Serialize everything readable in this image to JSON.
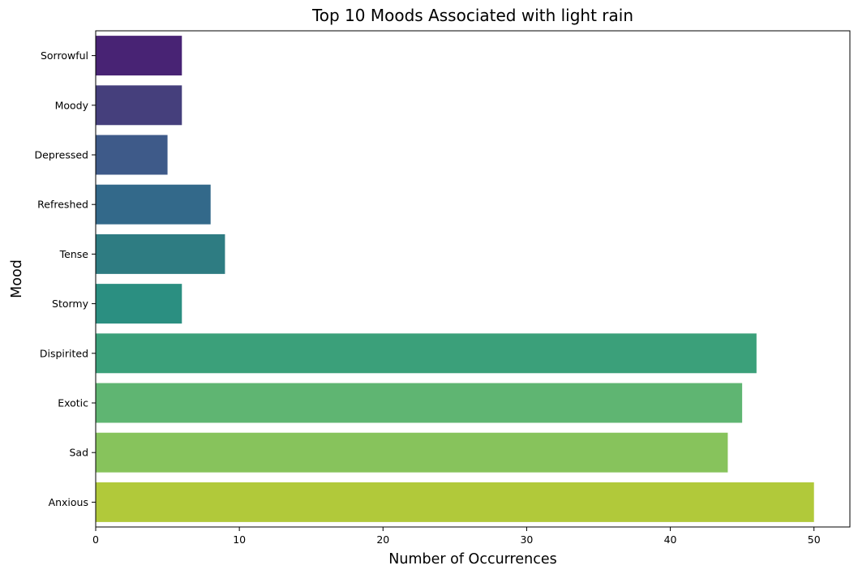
{
  "chart_data": {
    "type": "bar",
    "orientation": "horizontal",
    "title": "Top 10 Moods Associated with light rain",
    "xlabel": "Number of Occurrences",
    "ylabel": "Mood",
    "categories": [
      "Sorrowful",
      "Moody",
      "Depressed",
      "Refreshed",
      "Tense",
      "Stormy",
      "Dispirited",
      "Exotic",
      "Sad",
      "Anxious"
    ],
    "values": [
      6,
      6,
      5,
      8,
      9,
      6,
      46,
      45,
      44,
      50
    ],
    "colors": [
      "#482374",
      "#453f7c",
      "#3e5a89",
      "#33698a",
      "#2e7c82",
      "#2b8f81",
      "#3ba07a",
      "#5fb572",
      "#87c35c",
      "#b1c93a"
    ],
    "xlim": [
      0,
      52.5
    ],
    "xticks": [
      0,
      10,
      20,
      30,
      40,
      50
    ],
    "grid": false,
    "legend": "none"
  }
}
